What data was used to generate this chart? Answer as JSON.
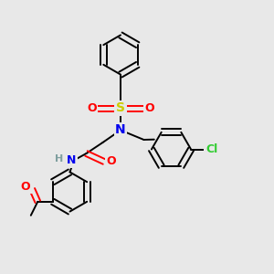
{
  "bg_color": "#e8e8e8",
  "bond_color": "#000000",
  "atom_colors": {
    "N": "#0000ee",
    "O": "#ff0000",
    "S": "#cccc00",
    "Cl": "#33cc33",
    "H": "#7f9f9f",
    "C": "#000000"
  },
  "figsize": [
    3.0,
    3.0
  ],
  "dpi": 100,
  "lw": 1.4,
  "r": 0.072
}
